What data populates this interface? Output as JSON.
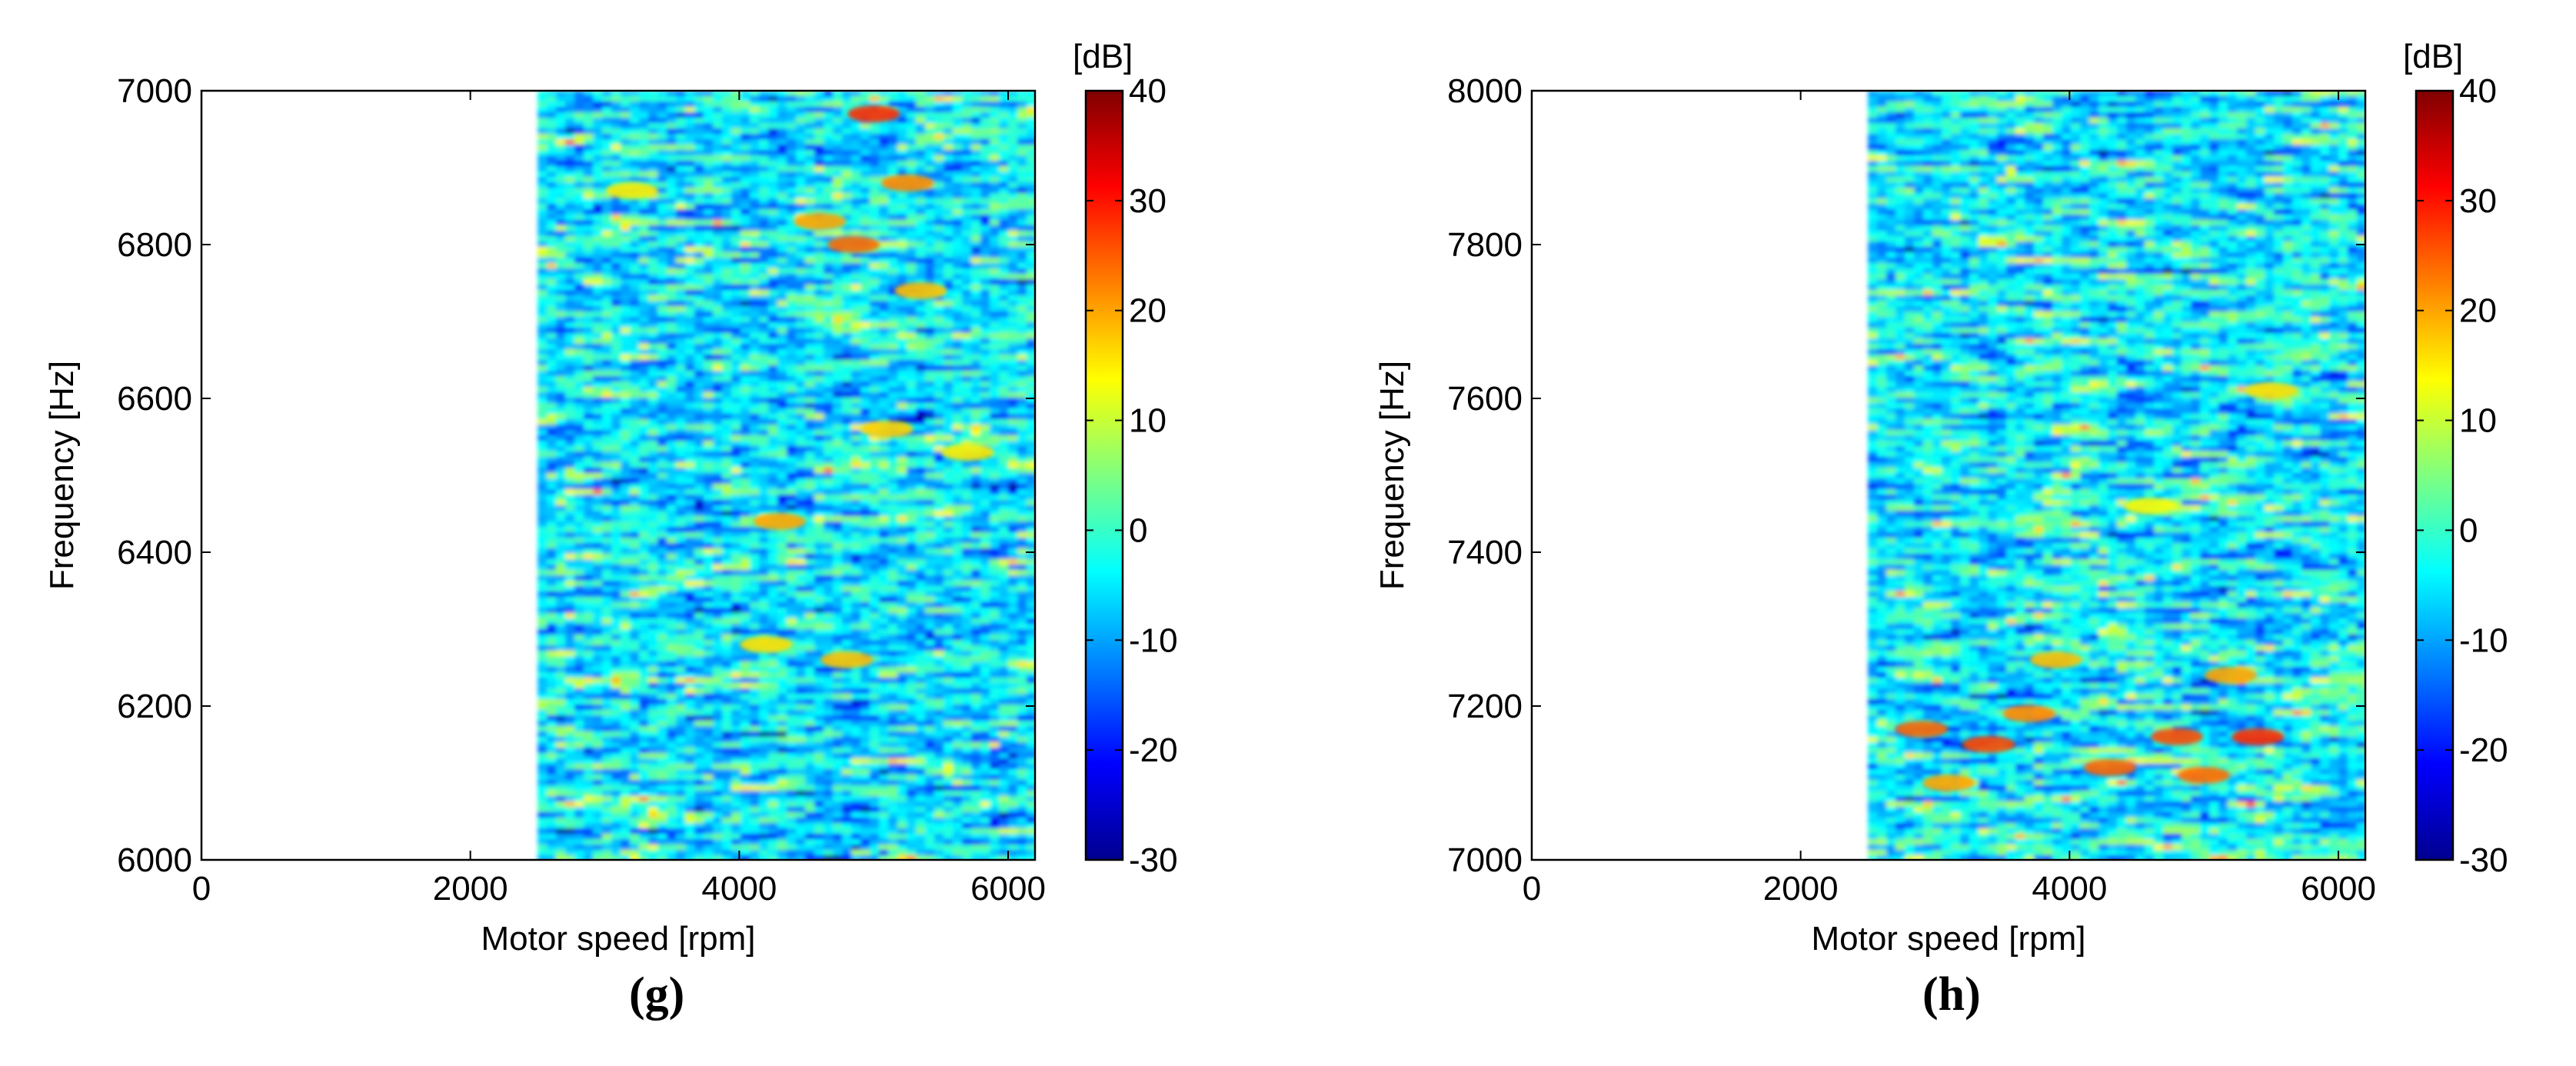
{
  "chart_data": [
    {
      "type": "heatmap",
      "panel_label": "(g)",
      "xlabel": "Motor speed [rpm]",
      "ylabel": "Frequency [Hz]",
      "xlim": [
        0,
        6200
      ],
      "ylim": [
        6000,
        7000
      ],
      "xticks": [
        0,
        2000,
        4000,
        6000
      ],
      "yticks": [
        6000,
        6200,
        6400,
        6600,
        6800,
        7000
      ],
      "data_x_range": [
        2500,
        6200
      ],
      "colorbar": {
        "label": "[dB]",
        "min": -30,
        "max": 40,
        "ticks": [
          40,
          30,
          20,
          10,
          0,
          -10,
          -20,
          -30
        ],
        "colormap": "jet"
      },
      "dominant_level_db": -5,
      "hot_spots": [
        {
          "x": 5000,
          "y": 6970,
          "db": 28
        },
        {
          "x": 4850,
          "y": 6800,
          "db": 24
        },
        {
          "x": 5250,
          "y": 6880,
          "db": 22
        },
        {
          "x": 4600,
          "y": 6830,
          "db": 20
        },
        {
          "x": 5350,
          "y": 6740,
          "db": 18
        },
        {
          "x": 4300,
          "y": 6440,
          "db": 20
        },
        {
          "x": 4200,
          "y": 6280,
          "db": 16
        },
        {
          "x": 4800,
          "y": 6260,
          "db": 18
        },
        {
          "x": 5100,
          "y": 6560,
          "db": 17
        },
        {
          "x": 3200,
          "y": 6870,
          "db": 15
        },
        {
          "x": 5700,
          "y": 6530,
          "db": 15
        }
      ]
    },
    {
      "type": "heatmap",
      "panel_label": "(h)",
      "xlabel": "Motor speed [rpm]",
      "ylabel": "Frequency [Hz]",
      "xlim": [
        0,
        6200
      ],
      "ylim": [
        7000,
        8000
      ],
      "xticks": [
        0,
        2000,
        4000,
        6000
      ],
      "yticks": [
        7000,
        7200,
        7400,
        7600,
        7800,
        8000
      ],
      "data_x_range": [
        2500,
        6200
      ],
      "colorbar": {
        "label": "[dB]",
        "min": -30,
        "max": 40,
        "ticks": [
          40,
          30,
          20,
          10,
          0,
          -10,
          -20,
          -30
        ],
        "colormap": "jet"
      },
      "dominant_level_db": -5,
      "hot_spots": [
        {
          "x": 2900,
          "y": 7170,
          "db": 24
        },
        {
          "x": 3400,
          "y": 7150,
          "db": 26
        },
        {
          "x": 3700,
          "y": 7190,
          "db": 22
        },
        {
          "x": 4300,
          "y": 7120,
          "db": 24
        },
        {
          "x": 4800,
          "y": 7160,
          "db": 26
        },
        {
          "x": 5400,
          "y": 7160,
          "db": 28
        },
        {
          "x": 5000,
          "y": 7110,
          "db": 24
        },
        {
          "x": 3900,
          "y": 7260,
          "db": 18
        },
        {
          "x": 5200,
          "y": 7240,
          "db": 20
        },
        {
          "x": 5500,
          "y": 7610,
          "db": 16
        },
        {
          "x": 4600,
          "y": 7460,
          "db": 14
        },
        {
          "x": 3100,
          "y": 7100,
          "db": 20
        }
      ]
    }
  ]
}
